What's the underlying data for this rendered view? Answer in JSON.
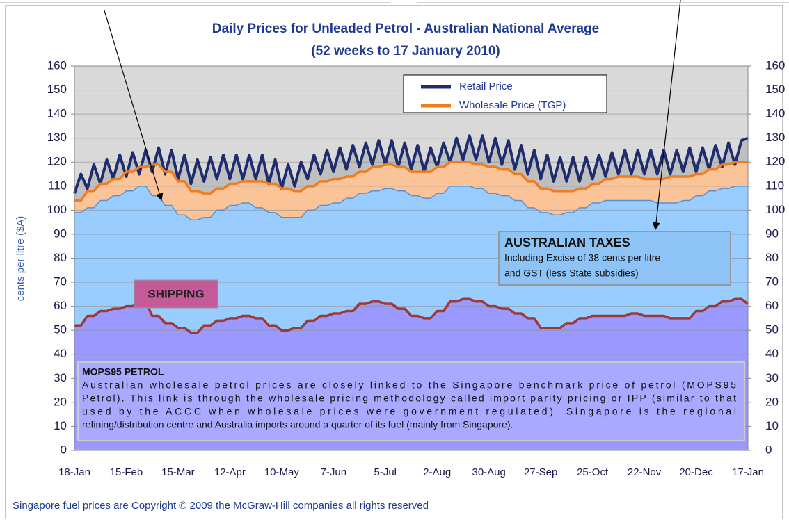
{
  "chart_data": {
    "type": "area",
    "title": "Daily Prices for Unleaded Petrol - Australian National Average",
    "subtitle": "(52 weeks to 17 January 2010)",
    "y_label": "cents per litre ($A)",
    "footer": "Singapore fuel prices are Copyright © 2009 the McGraw-Hill companies all rights reserved",
    "categories": [
      "18-Jan",
      null,
      null,
      null,
      null,
      null,
      null,
      null,
      "15-Feb",
      null,
      null,
      null,
      null,
      null,
      null,
      null,
      "15-Mar",
      null,
      null,
      null,
      null,
      null,
      null,
      null,
      "12-Apr",
      null,
      null,
      null,
      null,
      null,
      null,
      null,
      "10-May",
      null,
      null,
      null,
      null,
      null,
      null,
      null,
      "7-Jun",
      null,
      null,
      null,
      null,
      null,
      null,
      null,
      "5-Jul",
      null,
      null,
      null,
      null,
      null,
      null,
      null,
      "2-Aug",
      null,
      null,
      null,
      null,
      null,
      null,
      null,
      "30-Aug",
      null,
      null,
      null,
      null,
      null,
      null,
      null,
      "27-Sep",
      null,
      null,
      null,
      null,
      null,
      null,
      null,
      "25-Oct",
      null,
      null,
      null,
      null,
      null,
      null,
      null,
      "22-Nov",
      null,
      null,
      null,
      null,
      null,
      null,
      null,
      "20-Dec",
      null,
      null,
      null,
      null,
      null,
      null,
      null,
      "17-Jan"
    ],
    "series": [
      {
        "name": "Retail Price",
        "color": "#1f2d6e",
        "fill": "#bfbfbf",
        "values": [
          107,
          115,
          109,
          119,
          111,
          121,
          113,
          123,
          114,
          124,
          115,
          125,
          116,
          126,
          115,
          125,
          113,
          123,
          111,
          121,
          112,
          122,
          113,
          123,
          113,
          123,
          113,
          123,
          113,
          123,
          111,
          121,
          109,
          119,
          110,
          120,
          113,
          123,
          115,
          125,
          116,
          126,
          117,
          127,
          118,
          128,
          119,
          129,
          119,
          129,
          118,
          128,
          117,
          127,
          116,
          126,
          118,
          128,
          120,
          130,
          121,
          131,
          121,
          131,
          120,
          130,
          119,
          129,
          117,
          127,
          115,
          125,
          113,
          123,
          112,
          122,
          112,
          122,
          112,
          122,
          113,
          123,
          114,
          124,
          115,
          125,
          115,
          125,
          115,
          125,
          115,
          125,
          115,
          125,
          116,
          126,
          116,
          126,
          117,
          127,
          118,
          128,
          119,
          129,
          130
        ]
      },
      {
        "name": "Wholesale Price (TGP)",
        "color": "#f07c1e",
        "fill": "#fbc498",
        "values": [
          104,
          104,
          108,
          108,
          111,
          111,
          113,
          113,
          116,
          116,
          118,
          118,
          119,
          119,
          116,
          116,
          112,
          112,
          108,
          108,
          107,
          107,
          109,
          109,
          111,
          111,
          112,
          112,
          112,
          112,
          111,
          111,
          109,
          109,
          108,
          108,
          110,
          110,
          112,
          112,
          113,
          113,
          114,
          114,
          116,
          116,
          118,
          118,
          119,
          119,
          118,
          118,
          116,
          116,
          116,
          116,
          118,
          118,
          120,
          120,
          120,
          120,
          119,
          119,
          118,
          118,
          117,
          117,
          115,
          115,
          112,
          112,
          109,
          109,
          108,
          108,
          108,
          108,
          109,
          109,
          111,
          111,
          113,
          113,
          114,
          114,
          114,
          114,
          113,
          113,
          113,
          113,
          114,
          114,
          114,
          114,
          115,
          115,
          117,
          117,
          119,
          119,
          120,
          120,
          120
        ]
      },
      {
        "color": "#5b8fd0",
        "fill": "#99ccff",
        "values": [
          99,
          99,
          101,
          101,
          104,
          104,
          106,
          106,
          108,
          108,
          110,
          110,
          106,
          106,
          102,
          102,
          98,
          98,
          96,
          96,
          97,
          97,
          100,
          100,
          102,
          102,
          103,
          103,
          101,
          101,
          99,
          99,
          97,
          97,
          97,
          97,
          100,
          100,
          102,
          102,
          103,
          103,
          105,
          105,
          107,
          107,
          108,
          108,
          109,
          109,
          108,
          108,
          106,
          106,
          105,
          105,
          107,
          107,
          110,
          110,
          110,
          110,
          109,
          109,
          107,
          107,
          106,
          106,
          104,
          104,
          101,
          101,
          99,
          99,
          98,
          98,
          99,
          99,
          101,
          101,
          103,
          103,
          104,
          104,
          104,
          104,
          104,
          104,
          104,
          104,
          103,
          103,
          103,
          103,
          104,
          104,
          106,
          106,
          108,
          108,
          109,
          109,
          110,
          110,
          110
        ]
      },
      {
        "color": "#9c3a3a",
        "fill": "#9999ff",
        "values": [
          52,
          52,
          56,
          56,
          58,
          58,
          59,
          59,
          60,
          60,
          62,
          62,
          56,
          56,
          53,
          53,
          51,
          51,
          49,
          49,
          52,
          52,
          54,
          54,
          55,
          55,
          56,
          56,
          55,
          55,
          52,
          52,
          50,
          50,
          51,
          51,
          54,
          54,
          56,
          56,
          57,
          57,
          58,
          58,
          61,
          61,
          62,
          62,
          61,
          61,
          59,
          59,
          56,
          56,
          55,
          55,
          58,
          58,
          62,
          62,
          63,
          63,
          62,
          62,
          60,
          60,
          59,
          59,
          57,
          57,
          55,
          55,
          51,
          51,
          51,
          51,
          53,
          53,
          55,
          55,
          56,
          56,
          56,
          56,
          56,
          56,
          57,
          57,
          56,
          56,
          56,
          56,
          55,
          55,
          55,
          55,
          58,
          58,
          60,
          60,
          62,
          62,
          63,
          63,
          61
        ]
      }
    ],
    "ylim": [
      0,
      160
    ],
    "yticks": [
      0,
      10,
      20,
      30,
      40,
      50,
      60,
      70,
      80,
      90,
      100,
      110,
      120,
      130,
      140,
      150,
      160
    ],
    "y2lim": [
      0,
      160
    ],
    "y2ticks": [
      0,
      10,
      20,
      30,
      40,
      50,
      60,
      70,
      80,
      90,
      100,
      110,
      120,
      130,
      140,
      150,
      160
    ],
    "grid": true,
    "legend": "top",
    "annotations": {
      "shipping": "SHIPPING",
      "taxes_title": "AUSTRALIAN TAXES",
      "taxes_text": [
        "Including Excise of 38 cents per litre",
        "and GST (less State subsidies)"
      ],
      "mops_title": "MOPS95 PETROL",
      "mops_text": [
        "Australian wholesale petrol prices are closely linked to the Singapore benchmark price of petrol (MOPS95",
        "Petrol).  This link is through the wholesale pricing methodology called import parity pricing or IPP (similar to that",
        "used by the ACCC when wholesale prices were government regulated). Singapore is the regional",
        "refining/distribution centre and Australia imports around a quarter of its fuel (mainly from Singapore)."
      ]
    }
  }
}
